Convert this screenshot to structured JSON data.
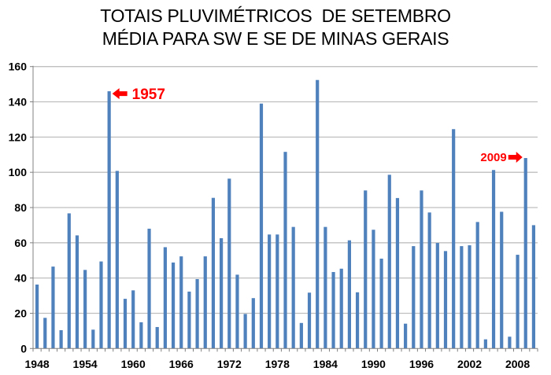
{
  "chart_data": {
    "type": "bar",
    "title": "TOTAIS PLUVIMÉTRICOS  DE SETEMBRO",
    "subtitle": "MÉDIA PARA SW E SE DE MINAS GERAIS",
    "xlabel": "",
    "ylabel": "",
    "ylim": [
      0,
      160
    ],
    "yticks": [
      0,
      20,
      40,
      60,
      80,
      100,
      120,
      140,
      160
    ],
    "xtick_labels": [
      "1948",
      "1954",
      "1960",
      "1966",
      "1972",
      "1978",
      "1984",
      "1990",
      "1996",
      "2002",
      "2008"
    ],
    "grid": true,
    "legend": null,
    "bar_color": "#4f81bd",
    "categories": [
      1948,
      1949,
      1950,
      1951,
      1952,
      1953,
      1954,
      1955,
      1956,
      1957,
      1958,
      1959,
      1960,
      1961,
      1962,
      1963,
      1964,
      1965,
      1966,
      1967,
      1968,
      1969,
      1970,
      1971,
      1972,
      1973,
      1974,
      1975,
      1976,
      1977,
      1978,
      1979,
      1980,
      1981,
      1982,
      1983,
      1984,
      1985,
      1986,
      1987,
      1988,
      1989,
      1990,
      1991,
      1992,
      1993,
      1994,
      1995,
      1996,
      1997,
      1998,
      1999,
      2000,
      2001,
      2002,
      2003,
      2004,
      2005,
      2006,
      2007,
      2008,
      2009,
      2010
    ],
    "values": [
      36.3,
      17.4,
      46.5,
      10.4,
      76.7,
      64.2,
      44.6,
      10.7,
      49.4,
      146.0,
      100.8,
      28.2,
      33.0,
      14.9,
      68.0,
      12.2,
      57.5,
      48.8,
      52.3,
      32.3,
      39.4,
      52.3,
      85.5,
      62.6,
      96.4,
      41.9,
      19.6,
      28.6,
      139.0,
      64.7,
      64.7,
      111.6,
      69.0,
      14.5,
      31.7,
      152.4,
      69.0,
      43.4,
      45.3,
      61.4,
      31.9,
      89.7,
      67.4,
      51.0,
      98.6,
      85.4,
      14.1,
      58.1,
      89.7,
      77.2,
      59.9,
      55.3,
      124.5,
      58.1,
      58.6,
      71.8,
      5.2,
      101.3,
      77.6,
      6.7,
      53.2,
      108.1,
      70.0
    ],
    "annotations": [
      {
        "text": "1957",
        "year": 1957,
        "arrow": "left",
        "color": "#ff0000"
      },
      {
        "text": "2009",
        "year": 2009,
        "arrow": "right",
        "color": "#ff0000"
      }
    ]
  }
}
